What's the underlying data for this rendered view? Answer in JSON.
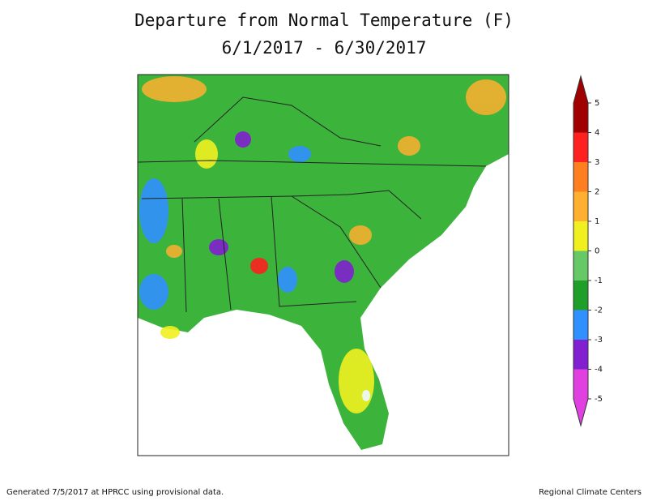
{
  "title": "Departure from Normal Temperature (F)",
  "subtitle": "6/1/2017 - 6/30/2017",
  "legend": {
    "ticks": [
      5,
      4,
      3,
      2,
      1,
      0,
      -1,
      -2,
      -3,
      -4,
      -5
    ],
    "colors": [
      "#a00000",
      "#ff2020",
      "#ff7f20",
      "#ffb030",
      "#f0f020",
      "#66c866",
      "#1f9f2a",
      "#3090ff",
      "#8020d0",
      "#e040e0"
    ]
  },
  "footer": {
    "left": "Generated 7/5/2017 at HPRCC using provisional data.",
    "right": "Regional Climate Centers"
  }
}
